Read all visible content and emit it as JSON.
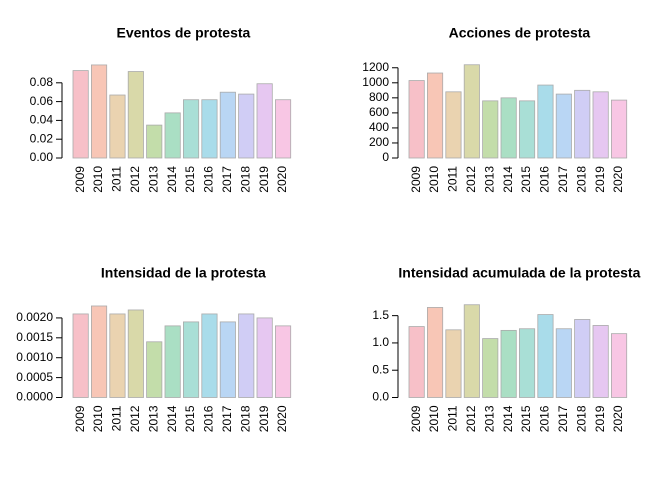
{
  "chart_data": [
    {
      "type": "bar",
      "title": "Eventos de protesta",
      "categories": [
        "2009",
        "2010",
        "2011",
        "2012",
        "2013",
        "2014",
        "2015",
        "2016",
        "2017",
        "2018",
        "2019",
        "2020"
      ],
      "values": [
        0.093,
        0.099,
        0.067,
        0.092,
        0.035,
        0.048,
        0.062,
        0.062,
        0.07,
        0.068,
        0.079,
        0.062
      ],
      "colors": [
        "#f7c0c8",
        "#f8c6b6",
        "#ead3b0",
        "#d9d9a9",
        "#c3ddaa",
        "#aadfc4",
        "#a9dfd6",
        "#a9dcea",
        "#b9d6f4",
        "#d0cdf5",
        "#e6c7f1",
        "#f8c6e4"
      ],
      "ylim": [
        0,
        0.1
      ],
      "yticks": [
        {
          "value": 0,
          "label": "0.00"
        },
        0.02,
        0.04,
        0.06,
        0.08
      ]
    },
    {
      "type": "bar",
      "title": "Acciones de protesta",
      "categories": [
        "2009",
        "2010",
        "2011",
        "2012",
        "2013",
        "2014",
        "2015",
        "2016",
        "2017",
        "2018",
        "2019",
        "2020"
      ],
      "values": [
        1030,
        1130,
        880,
        1240,
        760,
        800,
        760,
        970,
        850,
        900,
        880,
        770
      ],
      "colors": [
        "#f7c0c8",
        "#f8c6b6",
        "#ead3b0",
        "#d9d9a9",
        "#c3ddaa",
        "#aadfc4",
        "#a9dfd6",
        "#a9dcea",
        "#b9d6f4",
        "#d0cdf5",
        "#e6c7f1",
        "#f8c6e4"
      ],
      "ylim": [
        0,
        1250
      ],
      "yticks": [
        0,
        200,
        400,
        600,
        800,
        1000,
        1200
      ]
    },
    {
      "type": "bar",
      "title": "Intensidad de la protesta",
      "categories": [
        "2009",
        "2010",
        "2011",
        "2012",
        "2013",
        "2014",
        "2015",
        "2016",
        "2017",
        "2018",
        "2019",
        "2020"
      ],
      "values": [
        0.0021,
        0.0023,
        0.0021,
        0.0022,
        0.0014,
        0.0018,
        0.0019,
        0.0021,
        0.0019,
        0.0021,
        0.002,
        0.0018
      ],
      "colors": [
        "#f7c0c8",
        "#f8c6b6",
        "#ead3b0",
        "#d9d9a9",
        "#c3ddaa",
        "#aadfc4",
        "#a9dfd6",
        "#a9dcea",
        "#b9d6f4",
        "#d0cdf5",
        "#e6c7f1",
        "#f8c6e4"
      ],
      "ylim": [
        0,
        0.0024
      ],
      "yticks": [
        {
          "value": 0,
          "label": "0.0000"
        },
        0.0005,
        {
          "value": 0.001,
          "label": "0.0010"
        },
        0.0015,
        {
          "value": 0.002,
          "label": "0.0020"
        }
      ]
    },
    {
      "type": "bar",
      "title": "Intensidad acumulada de la protesta",
      "categories": [
        "2009",
        "2010",
        "2011",
        "2012",
        "2013",
        "2014",
        "2015",
        "2016",
        "2017",
        "2018",
        "2019",
        "2020"
      ],
      "values": [
        1.3,
        1.65,
        1.24,
        1.7,
        1.08,
        1.23,
        1.26,
        1.52,
        1.26,
        1.43,
        1.32,
        1.17
      ],
      "colors": [
        "#f7c0c8",
        "#f8c6b6",
        "#ead3b0",
        "#d9d9a9",
        "#c3ddaa",
        "#aadfc4",
        "#a9dfd6",
        "#a9dcea",
        "#b9d6f4",
        "#d0cdf5",
        "#e6c7f1",
        "#f8c6e4"
      ],
      "ylim": [
        0,
        1.75
      ],
      "yticks": [
        {
          "value": 0,
          "label": "0.0"
        },
        0.5,
        {
          "value": 1,
          "label": "1.0"
        },
        1.5
      ]
    }
  ]
}
